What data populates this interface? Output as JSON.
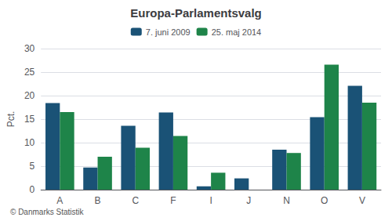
{
  "chart_data": {
    "type": "bar",
    "title": "Europa-Parlamentsvalg",
    "categories": [
      "A",
      "B",
      "C",
      "F",
      "I",
      "J",
      "N",
      "O",
      "V"
    ],
    "series": [
      {
        "name": "7. juni 2009",
        "color": "#1a5276",
        "values": [
          18.4,
          4.7,
          13.6,
          16.4,
          0.7,
          2.4,
          8.5,
          15.4,
          22.1
        ]
      },
      {
        "name": "25. maj 2014",
        "color": "#1e8449",
        "values": [
          16.5,
          7.0,
          8.9,
          11.4,
          3.6,
          0.0,
          7.8,
          26.6,
          18.5
        ]
      }
    ],
    "ylabel": "Pct.",
    "ylim": [
      0,
      30
    ],
    "yticks": [
      0,
      5,
      10,
      15,
      20,
      25,
      30
    ],
    "grid": true,
    "legend": "top",
    "footer": "© Danmarks Statistik"
  }
}
